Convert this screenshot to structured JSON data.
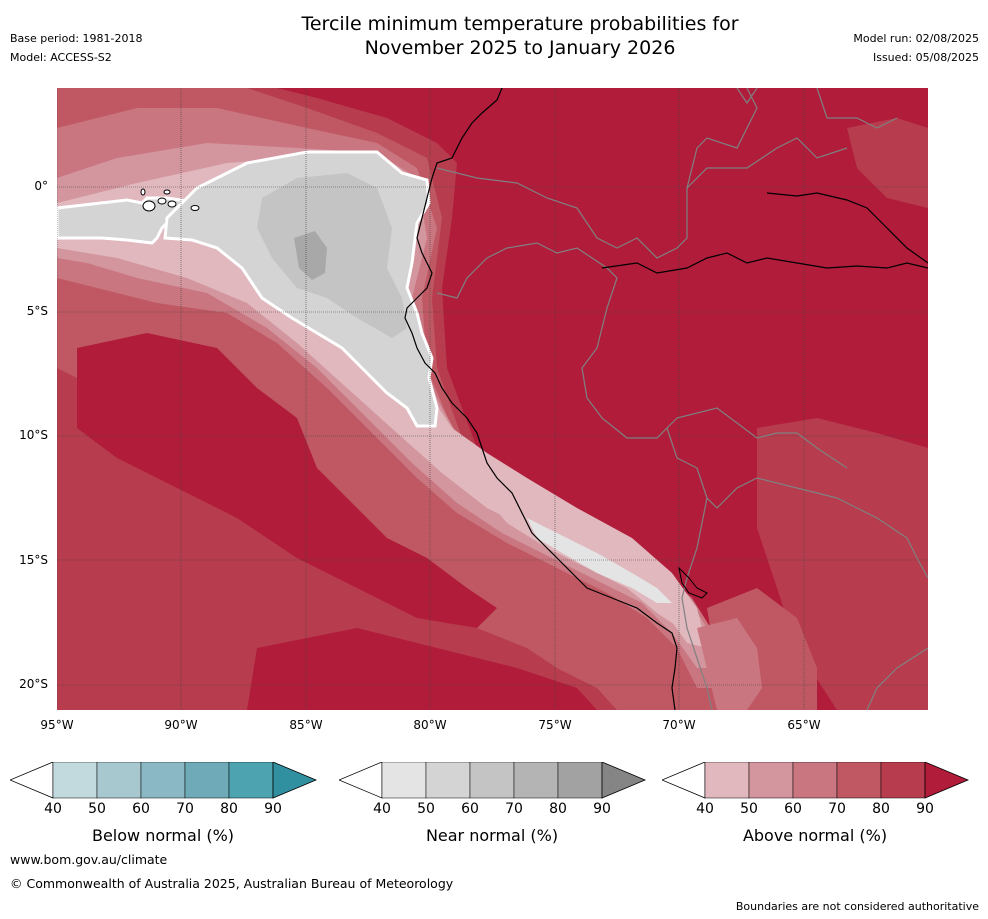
{
  "header": {
    "title_line1": "Tercile minimum temperature probabilities for",
    "title_line2": "November 2025 to January 2026",
    "base_period": "Base period: 1981-2018",
    "model": "Model: ACCESS-S2",
    "model_run": "Model run: 02/08/2025",
    "issued": "Issued: 05/08/2025"
  },
  "map": {
    "lat_labels": [
      "0°",
      "5°S",
      "10°S",
      "15°S",
      "20°S"
    ],
    "lon_labels": [
      "95°W",
      "90°W",
      "85°W",
      "80°W",
      "75°W",
      "70°W",
      "65°W"
    ]
  },
  "colorbars": [
    {
      "label": "Below normal (%)",
      "ticks": [
        "40",
        "50",
        "60",
        "70",
        "80",
        "90"
      ],
      "colors": [
        "#ffffff",
        "#c2d9de",
        "#a7c8cf",
        "#8ab8c4",
        "#6eaab7",
        "#4da3b0",
        "#3190a0"
      ]
    },
    {
      "label": "Near normal (%)",
      "ticks": [
        "40",
        "50",
        "60",
        "70",
        "80",
        "90"
      ],
      "colors": [
        "#ffffff",
        "#e4e4e4",
        "#d4d4d4",
        "#c4c4c4",
        "#b4b4b4",
        "#a2a2a2",
        "#858585"
      ]
    },
    {
      "label": "Above normal (%)",
      "ticks": [
        "40",
        "50",
        "60",
        "70",
        "80",
        "90"
      ],
      "colors": [
        "#ffffff",
        "#e0b8be",
        "#d3969e",
        "#c97680",
        "#c05863",
        "#b73d4e",
        "#b01c3a"
      ]
    }
  ],
  "footer": {
    "website": "www.bom.gov.au/climate",
    "copyright": "© Commonwealth of Australia 2025, Australian Bureau of Meteorology",
    "disclaimer": "Boundaries are not considered authoritative"
  }
}
